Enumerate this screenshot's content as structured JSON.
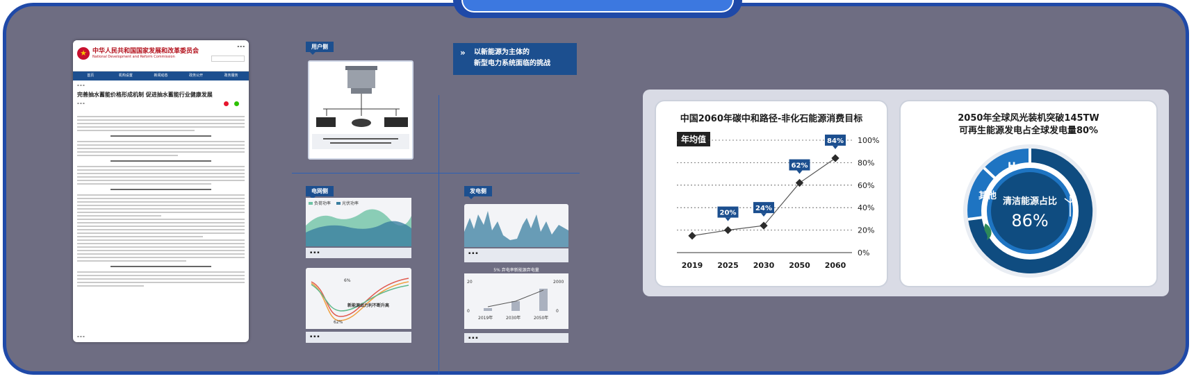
{
  "document": {
    "org_cn": "中华人民共和国国家发展和改革委员会",
    "org_en": "National Development and Reform Commission",
    "nav": [
      "首页",
      "机构设置",
      "新闻动态",
      "政务公开",
      "政务服务"
    ],
    "title": "完善抽水蓄能价格形成机制 促进抽水蓄能行业健康发展"
  },
  "middle": {
    "user_side_label": "用户侧",
    "grid_side_label": "电网侧",
    "gen_side_label": "发电侧",
    "challenge_line1": "以新能源为主体的",
    "challenge_line2": "新型电力系统面临的挑战",
    "chart_gen_title": "5% 弃电率新能源弃电量",
    "years": [
      "2019年",
      "2030年",
      "2050年"
    ],
    "axis_right_top": "2000",
    "axis_right_zero": "0",
    "axis_left_top": "20",
    "axis_left_zero": "0",
    "legend_load": "负荷功率",
    "legend_solar": "光伏功率",
    "pct_label": "62%",
    "pct_label_6": "6%",
    "hetero_label": "新能源出力利不断升高"
  },
  "line_chart": {
    "title": "中国2060年碳中和路径-非化石能源消费目标",
    "badge": "年均值",
    "chart_data": {
      "type": "line",
      "categories": [
        "2019",
        "2025",
        "2030",
        "2050",
        "2060"
      ],
      "values": [
        15,
        20,
        24,
        62,
        84
      ],
      "data_labels": [
        "",
        "20%",
        "24%",
        "62%",
        "84%"
      ],
      "yticks": [
        "100%",
        "80%",
        "60%",
        "40%",
        "20%",
        "0%"
      ],
      "ylim": [
        0,
        100
      ],
      "grid": true
    }
  },
  "donut": {
    "title_line1": "2050年全球风光装机突破145TW",
    "title_line2": "可再生能源发电占全球发电量80%",
    "center_label": "清洁能源占比",
    "center_value": "86%",
    "seg_h2": "H₂",
    "seg_other": "其他",
    "colors": {
      "dark": "#0f4c80",
      "mid": "#1e74c2",
      "ring": "#ffffff"
    }
  }
}
